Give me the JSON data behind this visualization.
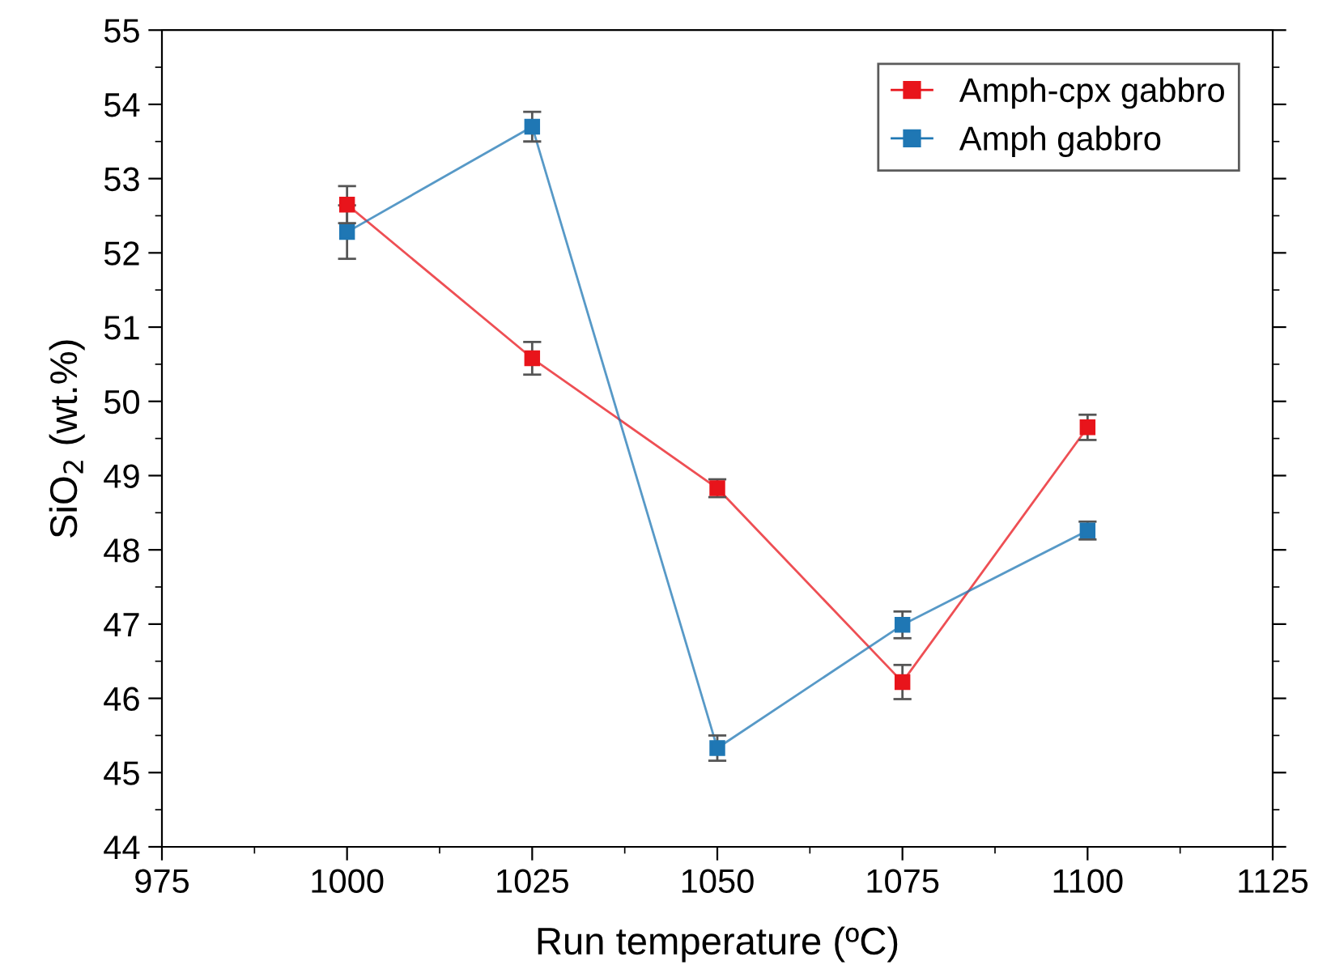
{
  "chart_data": {
    "type": "line",
    "xlabel": "Run temperature (ºC)",
    "ylabel": "SiO$_{2}$ (wt.%)",
    "x": [
      1000,
      1025,
      1050,
      1075,
      1100
    ],
    "series": [
      {
        "name": "Amph-cpx gabbro",
        "color": "#e8141b",
        "values": [
          52.65,
          50.58,
          48.83,
          46.22,
          49.65
        ],
        "errors": [
          0.25,
          0.22,
          0.12,
          0.23,
          0.17
        ]
      },
      {
        "name": "Amph gabbro",
        "color": "#1f77b4",
        "values": [
          52.28,
          53.7,
          45.33,
          46.99,
          48.26
        ],
        "errors": [
          0.36,
          0.2,
          0.17,
          0.18,
          0.12
        ]
      }
    ],
    "xlim": [
      975,
      1125
    ],
    "xticks": [
      975,
      1000,
      1025,
      1050,
      1075,
      1100,
      1125
    ],
    "ylim": [
      44,
      55
    ],
    "yticks": [
      44,
      45,
      46,
      47,
      48,
      49,
      50,
      51,
      52,
      53,
      54,
      55
    ],
    "marker": "square",
    "line_style": "solid",
    "grid": false,
    "legend": "top right"
  }
}
